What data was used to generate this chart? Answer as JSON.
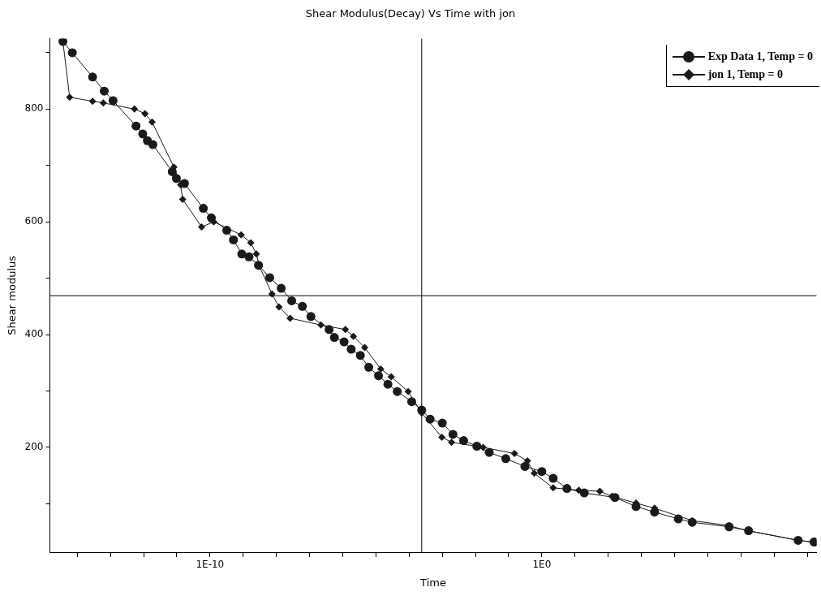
{
  "chart_data": {
    "type": "line",
    "title": "Shear Modulus(Decay) Vs Time with jon",
    "xlabel": "Time",
    "ylabel": "Shear modulus",
    "log": "x",
    "grid": false,
    "legend": "top right",
    "xlim": [
      1.5e-15,
      190000000.0
    ],
    "xticks": [
      {
        "value": 1e-14,
        "label": null
      },
      {
        "value": 1e-13,
        "label": null
      },
      {
        "value": 1e-12,
        "label": null
      },
      {
        "value": 1e-11,
        "label": null
      },
      {
        "value": 1e-10,
        "label": "1E-10"
      },
      {
        "value": 1e-09,
        "label": null
      },
      {
        "value": 1e-08,
        "label": null
      },
      {
        "value": 1e-07,
        "label": null
      },
      {
        "value": 1e-06,
        "label": null
      },
      {
        "value": 1e-05,
        "label": null
      },
      {
        "value": 0.0001,
        "label": null
      },
      {
        "value": 0.001,
        "label": null
      },
      {
        "value": 0.01,
        "label": null
      },
      {
        "value": 0.1,
        "label": null
      },
      {
        "value": 1,
        "label": "1E0"
      },
      {
        "value": 10,
        "label": null
      },
      {
        "value": 100,
        "label": null
      },
      {
        "value": 1000,
        "label": null
      },
      {
        "value": 10000.0,
        "label": null
      },
      {
        "value": 100000.0,
        "label": null
      },
      {
        "value": 1000000.0,
        "label": null
      },
      {
        "value": 10000000.0,
        "label": null
      },
      {
        "value": 100000000.0,
        "label": null
      }
    ],
    "ylim": [
      14,
      925
    ],
    "yticks": [
      {
        "value": 100,
        "label": null
      },
      200,
      {
        "value": 300,
        "label": null
      },
      400,
      {
        "value": 500,
        "label": null
      },
      600,
      {
        "value": 700,
        "label": null
      },
      800,
      {
        "value": 900,
        "label": null
      }
    ],
    "ref_lines": [
      {
        "axis": "x",
        "value": 0.00024,
        "color": "#000000"
      },
      {
        "axis": "y",
        "value": 469,
        "color": "#000000"
      }
    ],
    "series": [
      {
        "name": "Exp Data 1, Temp = 0",
        "color": "#1a1a1a",
        "marker": "circle",
        "x": [
          3.7e-15,
          7.1e-15,
          2.9e-14,
          6.5e-14,
          1.2e-13,
          5.9e-13,
          9.4e-13,
          1.3e-12,
          1.9e-12,
          7.3e-12,
          9.7e-12,
          1.7e-11,
          6.3e-11,
          1.1e-10,
          3.2e-10,
          5.1e-10,
          9.1e-10,
          1.5e-09,
          2.9e-09,
          6.3e-09,
          1.4e-08,
          2.9e-08,
          6.1e-08,
          1.1e-07,
          3.9e-07,
          5.6e-07,
          1.1e-06,
          1.8e-06,
          3.4e-06,
          6.1e-06,
          1.2e-05,
          2.3e-05,
          4.4e-05,
          0.00012,
          0.00024,
          0.00043,
          0.001,
          0.0021,
          0.0044,
          0.011,
          0.026,
          0.082,
          0.31,
          1,
          2.2,
          5.7,
          19,
          160,
          690,
          2500,
          13000.0,
          34000.0,
          440000.0,
          1700000.0,
          53000000.0,
          160000000.0
        ],
        "values": [
          920,
          900,
          857,
          832,
          815,
          770,
          756,
          744,
          737,
          689,
          677,
          668,
          624,
          607,
          585,
          568,
          543,
          538,
          523,
          501,
          482,
          460,
          450,
          432,
          409,
          395,
          387,
          374,
          363,
          342,
          327,
          312,
          299,
          281,
          266,
          250,
          243,
          223,
          212,
          202,
          191,
          180,
          166,
          157,
          145,
          127,
          119,
          111,
          95,
          85,
          73,
          67,
          59,
          52,
          35,
          32
        ]
      },
      {
        "name": "jon 1, Temp = 0",
        "color": "#1a1a1a",
        "marker": "diamond",
        "x": [
          3.7e-15,
          5.9e-15,
          2.9e-14,
          6.1e-14,
          5.3e-13,
          1.1e-12,
          1.8e-12,
          8.2e-12,
          1.3e-11,
          1.5e-11,
          5.6e-11,
          1.3e-10,
          8.7e-10,
          1.7e-09,
          2.5e-09,
          3.1e-09,
          7.4e-09,
          1.2e-08,
          2.6e-08,
          2.2e-07,
          1.2e-06,
          2.1e-06,
          4.6e-06,
          1.4e-05,
          2.9e-05,
          9.4e-05,
          0.00024,
          0.00097,
          0.0019,
          0.017,
          0.15,
          0.37,
          0.59,
          2.2,
          13,
          56,
          130,
          690,
          2500,
          34000.0,
          440000.0,
          1600000.0,
          53000000.0,
          180000000.0
        ],
        "values": [
          920,
          821,
          814,
          811,
          800,
          792,
          777,
          697,
          666,
          640,
          591,
          600,
          577,
          563,
          543,
          521,
          472,
          449,
          429,
          417,
          409,
          397,
          377,
          339,
          325,
          299,
          261,
          218,
          209,
          200,
          189,
          176,
          154,
          128,
          124,
          122,
          113,
          101,
          92,
          70,
          61,
          52,
          35,
          31
        ]
      }
    ]
  }
}
